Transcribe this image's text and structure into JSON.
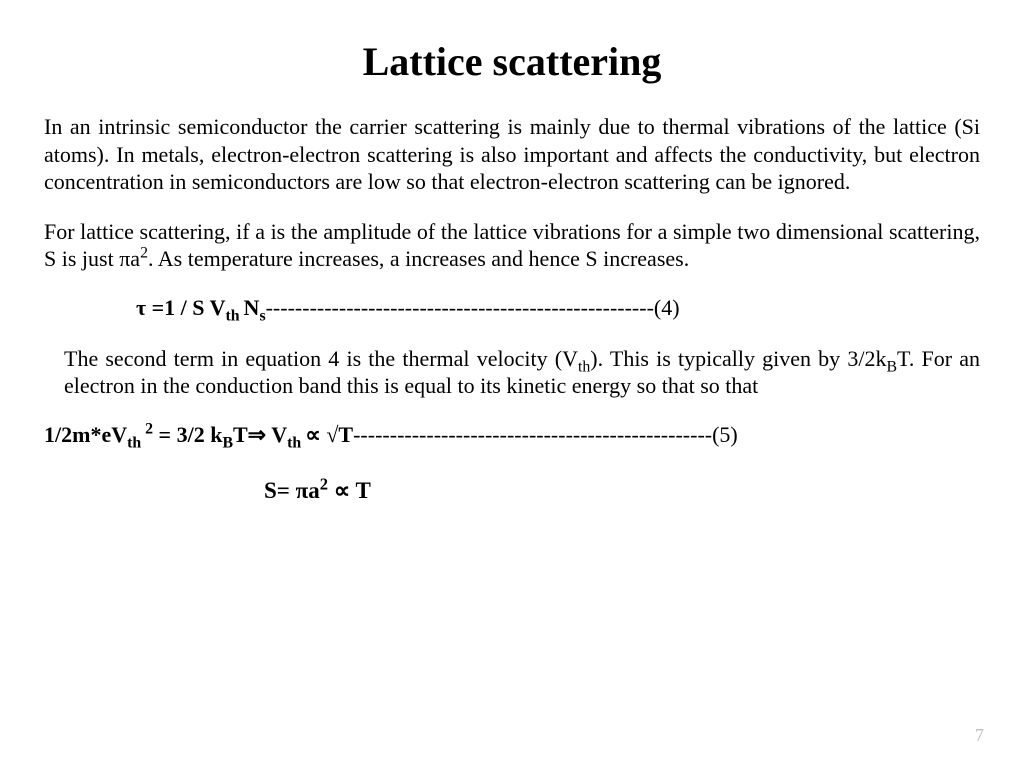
{
  "title": "Lattice scattering",
  "para1": "In an intrinsic semiconductor the carrier scattering is mainly due to thermal vibrations of the lattice (Si atoms). In metals, electron-electron scattering is also important and affects the conductivity, but electron concentration in semiconductors are low so that electron-electron scattering can be ignored.",
  "para2_pre": "For lattice scattering, if a is the amplitude of the lattice vibrations for a simple two dimensional scattering, S is just πa",
  "para2_sup": "2",
  "para2_post": ". As temperature increases, a increases and hence S increases.",
  "eq4_lead": "τ =1 / S V",
  "eq4_sub1": "th ",
  "eq4_mid": "N",
  "eq4_sub2": "s",
  "eq4_dashes": "-----------------------------------------------------",
  "eq4_num": "(4)",
  "para3_a": "The second term in equation 4 is the thermal velocity (V",
  "para3_sub1": "th",
  "para3_b": "). This is typically given by 3/2k",
  "para3_sub2": "B",
  "para3_c": "T. For an electron in the conduction band this is equal to its kinetic energy so that so that",
  "eq5_a": "1/2m*eV",
  "eq5_sub1": "th",
  "eq5_sup1": " 2",
  "eq5_b": " = 3/2 k",
  "eq5_sub2": "B",
  "eq5_c": "T⇒  V",
  "eq5_sub3": "th ",
  "eq5_d": "∝ √T",
  "eq5_dashes": "-------------------------------------------------",
  "eq5_num": "(5)",
  "eq6_a": "S=  πa",
  "eq6_sup": "2",
  "eq6_b": "  ∝ T",
  "page_number": "7"
}
